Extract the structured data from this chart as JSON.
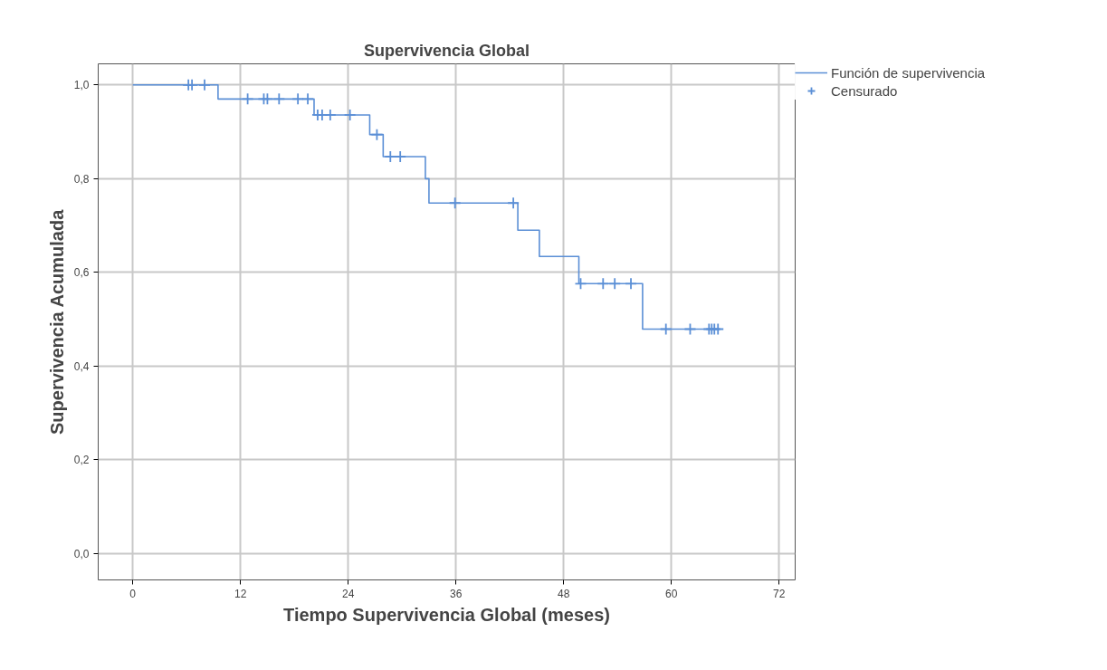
{
  "chart_data": {
    "type": "step",
    "title": "Supervivencia Global",
    "xlabel": "Tiempo Supervivencia Global (meses)",
    "ylabel": "Supervivencia Acumulada",
    "series": [
      {
        "name": "Función de supervivencia",
        "color": "#5b8fd6",
        "marker": "none",
        "x": [
          0,
          9.5,
          20.2,
          26.4,
          27.9,
          32.6,
          33.0,
          42.9,
          45.3,
          49.7,
          56.8,
          65.5
        ],
        "values": [
          1.0,
          0.97,
          0.936,
          0.894,
          0.847,
          0.8,
          0.748,
          0.69,
          0.634,
          0.576,
          0.479,
          0.479
        ]
      },
      {
        "name": "Censurado",
        "type": "scatter",
        "color": "#5b8fd6",
        "marker": "cross",
        "x": [
          6.2,
          6.6,
          8.0,
          12.8,
          14.6,
          15.0,
          16.3,
          18.4,
          19.5,
          20.6,
          21.1,
          22.0,
          24.2,
          27.2,
          28.7,
          29.8,
          35.9,
          42.4,
          49.9,
          52.4,
          53.7,
          55.5,
          59.4,
          62.1,
          64.2,
          64.5,
          64.8,
          65.2
        ],
        "values": [
          1.0,
          1.0,
          1.0,
          0.97,
          0.97,
          0.97,
          0.97,
          0.97,
          0.97,
          0.936,
          0.936,
          0.936,
          0.936,
          0.894,
          0.847,
          0.847,
          0.748,
          0.748,
          0.576,
          0.576,
          0.576,
          0.576,
          0.479,
          0.479,
          0.479,
          0.479,
          0.479,
          0.479
        ]
      }
    ],
    "xlim": [
      -3.85,
      73.8
    ],
    "ylim": [
      -0.056,
      1.045
    ],
    "xticks": [
      0,
      12,
      24,
      36,
      48,
      60,
      72
    ],
    "yticks": [
      {
        "value": 0.0,
        "label": "0,0"
      },
      {
        "value": 0.2,
        "label": "0,2"
      },
      {
        "value": 0.4,
        "label": "0,4"
      },
      {
        "value": 0.6,
        "label": "0,6"
      },
      {
        "value": 0.8,
        "label": "0,8"
      },
      {
        "value": 1.0,
        "label": "1,0"
      }
    ],
    "grid": true,
    "legend": "top right"
  }
}
